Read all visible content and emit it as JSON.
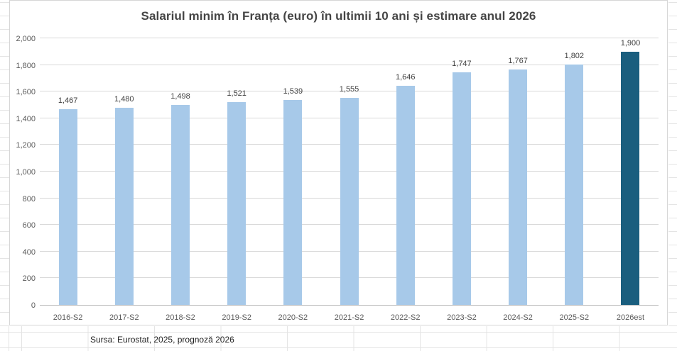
{
  "chart_data": {
    "type": "bar",
    "title": "Salariul minim în Franța (euro) în ultimii 10 ani și estimare anul 2026",
    "categories": [
      "2016-S2",
      "2017-S2",
      "2018-S2",
      "2019-S2",
      "2020-S2",
      "2021-S2",
      "2022-S2",
      "2023-S2",
      "2024-S2",
      "2025-S2",
      "2026est"
    ],
    "values": [
      1467,
      1480,
      1498,
      1521,
      1539,
      1555,
      1646,
      1747,
      1767,
      1802,
      1900
    ],
    "value_labels": [
      "1,467",
      "1,480",
      "1,498",
      "1,521",
      "1,539",
      "1,555",
      "1,646",
      "1,747",
      "1,767",
      "1,802",
      "1,900"
    ],
    "xlabel": "",
    "ylabel": "",
    "ylim": [
      0,
      2000
    ],
    "ytick_interval": 200,
    "ytick_labels": [
      "0",
      "200",
      "400",
      "600",
      "800",
      "1,000",
      "1,200",
      "1,400",
      "1,600",
      "1,800",
      "2,000"
    ],
    "grid": true,
    "legend": "none",
    "bar_color": "#A7C9E9",
    "highlight_index": 10,
    "highlight_color": "#1A5E7E",
    "gridline_color": "#D9D9D9",
    "axis_line_color": "#BFBFBF"
  },
  "source_note": "Sursa: Eurostat, 2025, prognoză 2026"
}
